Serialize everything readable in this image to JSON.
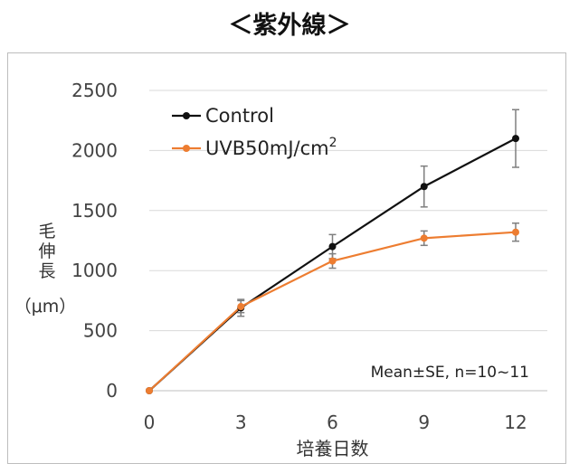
{
  "title": "＜紫外線＞",
  "chart_data": {
    "type": "line",
    "title": "＜紫外線＞",
    "xlabel": "培養日数",
    "ylabel_chars": [
      "毛",
      "伸",
      "長"
    ],
    "ylabel_unit": "（μm）",
    "x": [
      0,
      3,
      6,
      9,
      12
    ],
    "x_tick_labels": [
      "0",
      "3",
      "6",
      "9",
      "12"
    ],
    "y_tick_labels": [
      "0",
      "500",
      "1000",
      "1500",
      "2000",
      "2500"
    ],
    "xlim": [
      0,
      12
    ],
    "ylim": [
      0,
      2500
    ],
    "grid": "horizontal",
    "legend_position": "top-left",
    "series": [
      {
        "name": "Control",
        "color": "#111111",
        "values": [
          0,
          690,
          1200,
          1700,
          2100
        ],
        "errors": [
          0,
          70,
          100,
          170,
          240
        ]
      },
      {
        "name": "UVB50mJ/cm",
        "name_superscript": "2",
        "color": "#ED7D31",
        "values": [
          0,
          700,
          1080,
          1270,
          1320
        ],
        "errors": [
          0,
          50,
          60,
          60,
          75
        ]
      }
    ],
    "annotation": "Mean±SE, n=10~11"
  }
}
